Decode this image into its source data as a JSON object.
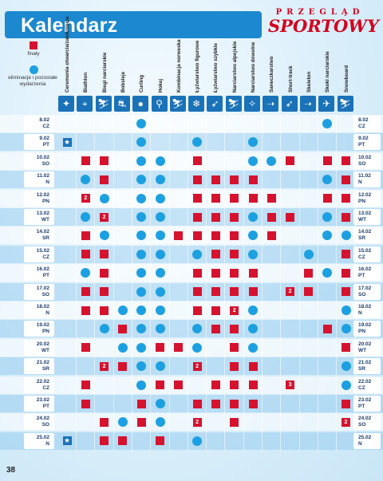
{
  "header": {
    "title": "Kalendarz",
    "logo_top": "PRZEGLĄD",
    "logo_main": "SPORTOWY"
  },
  "legend": {
    "finals_label": "finały",
    "other_label": "eliminacje i pozostałe wydarzenia"
  },
  "colors": {
    "title_bar": "#1b88cf",
    "final": "#d5132f",
    "other": "#1da0e1",
    "icon_bg": "#1a72b8",
    "ceremony": "#1a72b8"
  },
  "disciplines": [
    {
      "name": "Ceremonia otwarcia/zamknięcia",
      "icon": "ceremony-icon"
    },
    {
      "name": "Biathlon",
      "icon": "biathlon-icon"
    },
    {
      "name": "Biegi narciarskie",
      "icon": "cross-country-icon"
    },
    {
      "name": "Bobsleje",
      "icon": "bobsleigh-icon"
    },
    {
      "name": "Curling",
      "icon": "curling-icon"
    },
    {
      "name": "Hokej",
      "icon": "hockey-icon"
    },
    {
      "name": "Kombinacja norweska",
      "icon": "nordic-combined-icon"
    },
    {
      "name": "Łyżwiarstwo figurowe",
      "icon": "figure-skating-icon"
    },
    {
      "name": "Łyżwiarstwo szybkie",
      "icon": "speed-skating-icon"
    },
    {
      "name": "Narciarstwo alpejskie",
      "icon": "alpine-skiing-icon"
    },
    {
      "name": "Narciarstwo dowolne",
      "icon": "freestyle-skiing-icon"
    },
    {
      "name": "Saneczkarstwo",
      "icon": "luge-icon"
    },
    {
      "name": "Short-track",
      "icon": "short-track-icon"
    },
    {
      "name": "Skeleton",
      "icon": "skeleton-icon"
    },
    {
      "name": "Skoki narciarskie",
      "icon": "ski-jumping-icon"
    },
    {
      "name": "Snowboard",
      "icon": "snowboard-icon"
    }
  ],
  "days": [
    {
      "date": "8.02",
      "dow": "CZ",
      "cells": [
        "",
        "",
        "",
        "",
        "c",
        "",
        "",
        "",
        "",
        "",
        "",
        "",
        "",
        "",
        "c",
        ""
      ]
    },
    {
      "date": "9.02",
      "dow": "PT",
      "cells": [
        "*",
        "",
        "",
        "",
        "c",
        "",
        "",
        "c",
        "",
        "",
        "c",
        "",
        "",
        "",
        "",
        ""
      ]
    },
    {
      "date": "10.02",
      "dow": "SO",
      "cells": [
        "",
        "s",
        "s",
        "",
        "c",
        "c",
        "",
        "s",
        "",
        "",
        "c",
        "c",
        "s",
        "",
        "s",
        "s"
      ]
    },
    {
      "date": "11.02",
      "dow": "N",
      "cells": [
        "",
        "c",
        "s",
        "",
        "c",
        "c",
        "",
        "s",
        "s",
        "s",
        "s",
        "",
        "",
        "",
        "c",
        "s"
      ]
    },
    {
      "date": "12.02",
      "dow": "PN",
      "cells": [
        "",
        "2",
        "c",
        "",
        "c",
        "c",
        "",
        "s",
        "s",
        "s",
        "s",
        "s",
        "",
        "",
        "s",
        "s"
      ]
    },
    {
      "date": "13.02",
      "dow": "WT",
      "cells": [
        "",
        "c",
        "2",
        "",
        "c",
        "c",
        "",
        "s",
        "s",
        "s",
        "c",
        "s",
        "s",
        "",
        "c",
        "s"
      ]
    },
    {
      "date": "14.02",
      "dow": "SR",
      "cells": [
        "",
        "s",
        "c",
        "",
        "c",
        "c",
        "s",
        "s",
        "s",
        "s",
        "c",
        "s",
        "",
        "",
        "c",
        "c"
      ]
    },
    {
      "date": "15.02",
      "dow": "CZ",
      "cells": [
        "",
        "s",
        "s",
        "",
        "c",
        "c",
        "",
        "c",
        "s",
        "s",
        "c",
        "",
        "",
        "c",
        "",
        "s"
      ]
    },
    {
      "date": "16.02",
      "dow": "PT",
      "cells": [
        "",
        "c",
        "s",
        "",
        "c",
        "c",
        "",
        "s",
        "s",
        "s",
        "s",
        "",
        "",
        "s",
        "c",
        "s"
      ]
    },
    {
      "date": "17.02",
      "dow": "SO",
      "cells": [
        "",
        "s",
        "s",
        "",
        "c",
        "c",
        "",
        "s",
        "s",
        "s",
        "s",
        "",
        "2",
        "s",
        "",
        "s"
      ]
    },
    {
      "date": "18.02",
      "dow": "N",
      "cells": [
        "",
        "s",
        "s",
        "c",
        "c",
        "c",
        "",
        "s",
        "s",
        "2",
        "c",
        "",
        "",
        "",
        "",
        "c"
      ]
    },
    {
      "date": "19.02",
      "dow": "PN",
      "cells": [
        "",
        "",
        "c",
        "s",
        "c",
        "c",
        "",
        "c",
        "s",
        "s",
        "c",
        "",
        "",
        "",
        "s",
        "c"
      ]
    },
    {
      "date": "20.02",
      "dow": "WT",
      "cells": [
        "",
        "s",
        "",
        "c",
        "c",
        "s",
        "s",
        "c",
        "",
        "s",
        "c",
        "",
        "",
        "",
        "",
        "s"
      ]
    },
    {
      "date": "21.02",
      "dow": "SR",
      "cells": [
        "",
        "",
        "2",
        "s",
        "c",
        "c",
        "",
        "2",
        "",
        "s",
        "s",
        "",
        "",
        "",
        "",
        "c"
      ]
    },
    {
      "date": "22.02",
      "dow": "CZ",
      "cells": [
        "",
        "s",
        "",
        "",
        "c",
        "s",
        "s",
        "",
        "s",
        "s",
        "s",
        "",
        "3",
        "",
        "",
        "c"
      ]
    },
    {
      "date": "23.02",
      "dow": "PT",
      "cells": [
        "",
        "s",
        "",
        "",
        "s",
        "c",
        "",
        "s",
        "s",
        "s",
        "s",
        "",
        "",
        "",
        "",
        "s"
      ]
    },
    {
      "date": "24.02",
      "dow": "SO",
      "cells": [
        "",
        "",
        "s",
        "c",
        "s",
        "c",
        "",
        "2",
        "",
        "s",
        "",
        "",
        "",
        "",
        "",
        "2"
      ]
    },
    {
      "date": "25.02",
      "dow": "N",
      "cells": [
        "*",
        "",
        "s",
        "s",
        "",
        "s",
        "",
        "c",
        "",
        "",
        "",
        "",
        "",
        "",
        "",
        ""
      ]
    }
  ],
  "page_number": "38"
}
